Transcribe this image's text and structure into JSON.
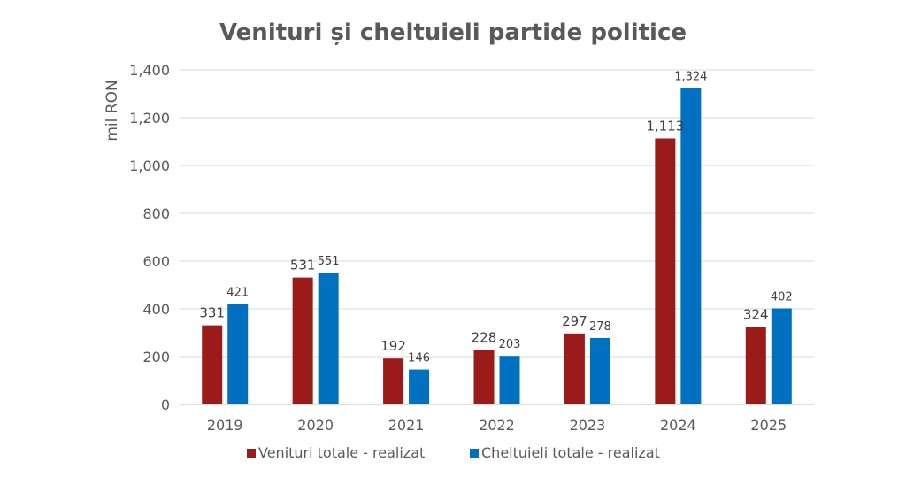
{
  "chart_data": {
    "type": "bar",
    "title": "Venituri și cheltuieli partide politice",
    "xlabel": "",
    "ylabel": "mil RON",
    "ylim": [
      0,
      1400
    ],
    "yticks": [
      0,
      200,
      400,
      600,
      800,
      1000,
      1200,
      1400
    ],
    "ytick_labels": [
      "0",
      "200",
      "400",
      "600",
      "800",
      "1,000",
      "1,200",
      "1,400"
    ],
    "grid": true,
    "legend_position": "bottom",
    "categories": [
      "2019",
      "2020",
      "2021",
      "2022",
      "2023",
      "2024",
      "2025"
    ],
    "series": [
      {
        "name": "Venituri totale - realizat",
        "color": "#9B1B1B",
        "values": [
          331,
          531,
          192,
          228,
          297,
          1113,
          324
        ],
        "labels": [
          "331",
          "531",
          "192",
          "228",
          "297",
          "1,113",
          "324"
        ]
      },
      {
        "name": "Cheltuieli totale - realizat",
        "color": "#0070C0",
        "values": [
          421,
          551,
          146,
          203,
          278,
          1324,
          402
        ],
        "labels": [
          "421",
          "551",
          "146",
          "203",
          "278",
          "1,324",
          "402"
        ]
      }
    ]
  }
}
